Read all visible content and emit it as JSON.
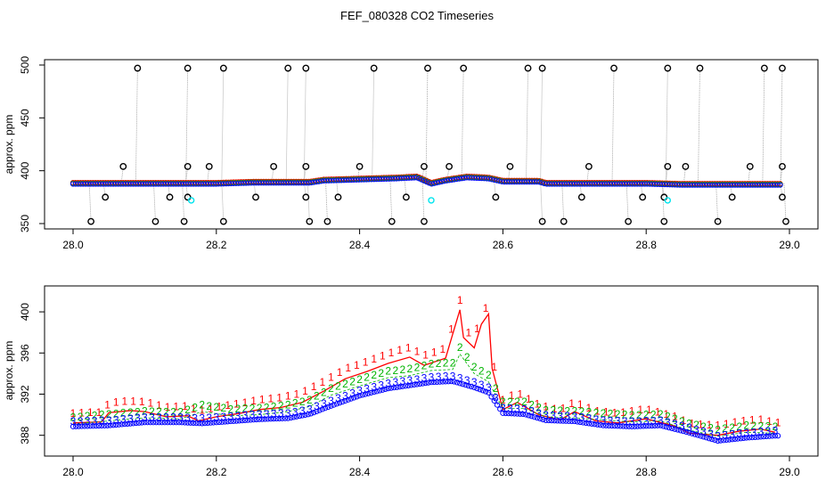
{
  "figure_title": "FEF_080328  CO2 Timeseries",
  "colors": {
    "black": "#000000",
    "red": "#ff0000",
    "green": "#00b400",
    "blue": "#0000ff",
    "cyan": "#00e5ee",
    "gray": "#999999"
  },
  "chart_data": [
    {
      "type": "scatter",
      "title": "FEF_080328  CO2 Timeseries",
      "xlabel": "",
      "ylabel": "approx. ppm",
      "xlim": [
        28.0,
        29.0
      ],
      "ylim": [
        350,
        500
      ],
      "x_ticks": [
        28.0,
        28.2,
        28.4,
        28.6,
        28.8,
        29.0
      ],
      "x_tick_labels": [
        "28.0",
        "28.2",
        "28.4",
        "28.6",
        "28.8",
        "29.0"
      ],
      "y_ticks": [
        350,
        400,
        450,
        500
      ],
      "y_tick_labels": [
        "350",
        "400",
        "450",
        "500"
      ],
      "baseline": {
        "x": [
          28.0,
          28.05,
          28.1,
          28.15,
          28.165,
          28.2,
          28.25,
          28.3,
          28.33,
          28.35,
          28.4,
          28.45,
          28.48,
          28.5,
          28.52,
          28.55,
          28.58,
          28.6,
          28.63,
          28.65,
          28.66,
          28.7,
          28.75,
          28.8,
          28.85,
          28.9,
          28.95,
          28.99
        ],
        "y": [
          389,
          389,
          389,
          389,
          389,
          389,
          390,
          390,
          390,
          392,
          393,
          394,
          395,
          389,
          392,
          395,
          394,
          391,
          391,
          391,
          389,
          389,
          389,
          389,
          388,
          388,
          388,
          388
        ]
      },
      "spikes_high": {
        "x": [
          28.09,
          28.16,
          28.21,
          28.3,
          28.325,
          28.42,
          28.495,
          28.545,
          28.635,
          28.655,
          28.755,
          28.83,
          28.875,
          28.965,
          28.99
        ],
        "y": [
          497,
          497,
          497,
          497,
          497,
          497,
          497,
          497,
          497,
          497,
          497,
          497,
          497,
          497,
          497
        ]
      },
      "spikes_mid": {
        "x": [
          28.07,
          28.16,
          28.19,
          28.28,
          28.325,
          28.4,
          28.49,
          28.525,
          28.61,
          28.72,
          28.83,
          28.855,
          28.945,
          28.99
        ],
        "y": [
          404,
          404,
          404,
          404,
          404,
          404,
          404,
          404,
          404,
          404,
          404,
          404,
          404,
          404
        ]
      },
      "spikes_low1": {
        "x": [
          28.045,
          28.135,
          28.16,
          28.255,
          28.325,
          28.37,
          28.465,
          28.59,
          28.71,
          28.795,
          28.825,
          28.92,
          28.99
        ],
        "y": [
          375,
          375,
          375,
          375,
          375,
          375,
          375,
          375,
          375,
          375,
          375,
          375,
          375
        ]
      },
      "spikes_low2": {
        "x": [
          28.025,
          28.115,
          28.155,
          28.21,
          28.33,
          28.355,
          28.445,
          28.49,
          28.655,
          28.685,
          28.775,
          28.825,
          28.9,
          28.995
        ],
        "y": [
          352,
          352,
          352,
          352,
          352,
          352,
          352,
          352,
          352,
          352,
          352,
          352,
          352,
          352
        ]
      },
      "cyan_points": {
        "x": [
          28.165,
          28.5,
          28.83
        ],
        "y": [
          372,
          372,
          372
        ]
      }
    },
    {
      "type": "line",
      "title": "",
      "xlabel": "",
      "ylabel": "approx. ppm",
      "xlim": [
        28.0,
        29.0
      ],
      "ylim": [
        386.5,
        402
      ],
      "x_ticks": [
        28.0,
        28.2,
        28.4,
        28.6,
        28.8,
        29.0
      ],
      "x_tick_labels": [
        "28.0",
        "28.2",
        "28.4",
        "28.6",
        "28.8",
        "29.0"
      ],
      "y_ticks": [
        388,
        392,
        396,
        400
      ],
      "y_tick_labels": [
        "388",
        "392",
        "396",
        "400"
      ],
      "series": [
        {
          "name": "1",
          "symbol": "1",
          "color": "#ff0000",
          "x": [
            28.0,
            28.04,
            28.05,
            28.08,
            28.1,
            28.13,
            28.16,
            28.175,
            28.2,
            28.23,
            28.26,
            28.29,
            28.32,
            28.35,
            28.38,
            28.41,
            28.44,
            28.47,
            28.49,
            28.52,
            28.54,
            28.545,
            28.56,
            28.57,
            28.58,
            28.585,
            28.6,
            28.62,
            28.65,
            28.68,
            28.7,
            28.73,
            28.76,
            28.8,
            28.84,
            28.86,
            28.9,
            28.93,
            28.96,
            28.98
          ],
          "y": [
            389.2,
            389.3,
            390.2,
            390.4,
            390.3,
            389.8,
            389.9,
            389.4,
            389.8,
            390.1,
            390.5,
            390.7,
            391.2,
            392.3,
            393.5,
            394.2,
            395.0,
            395.6,
            394.8,
            395.5,
            400.2,
            397.5,
            396.5,
            398.8,
            399.8,
            394.5,
            390.5,
            391.2,
            390.0,
            389.5,
            390.3,
            389.4,
            389.2,
            389.6,
            388.9,
            388.2,
            388.0,
            388.4,
            388.6,
            388.3
          ]
        },
        {
          "name": "2",
          "symbol": "2",
          "color": "#00b400",
          "x": [
            28.0,
            28.05,
            28.1,
            28.15,
            28.18,
            28.22,
            28.26,
            28.3,
            28.33,
            28.36,
            28.4,
            28.44,
            28.47,
            28.5,
            28.53,
            28.54,
            28.56,
            28.58,
            28.6,
            28.63,
            28.66,
            28.7,
            28.74,
            28.78,
            28.82,
            28.86,
            28.9,
            28.94,
            28.98
          ],
          "y": [
            389.1,
            389.4,
            389.7,
            389.6,
            390.3,
            389.9,
            390.0,
            390.3,
            390.8,
            391.9,
            392.8,
            393.6,
            393.8,
            394.3,
            394.4,
            395.9,
            394.0,
            393.2,
            390.6,
            390.6,
            389.8,
            389.7,
            389.5,
            389.3,
            389.4,
            388.5,
            387.9,
            388.3,
            388.2
          ]
        },
        {
          "name": "3",
          "symbol": "3",
          "color": "#0000ff",
          "x": [
            28.0,
            28.05,
            28.1,
            28.15,
            28.18,
            28.22,
            28.26,
            28.3,
            28.33,
            28.36,
            28.4,
            28.44,
            28.47,
            28.5,
            28.53,
            28.56,
            28.58,
            28.6,
            28.63,
            28.66,
            28.7,
            28.74,
            28.78,
            28.82,
            28.86,
            28.9,
            28.94,
            28.98
          ],
          "y": [
            389.0,
            389.1,
            389.4,
            389.4,
            389.3,
            389.5,
            389.7,
            389.8,
            390.2,
            391.0,
            392.0,
            392.7,
            393.0,
            393.3,
            393.4,
            392.8,
            392.3,
            390.3,
            390.2,
            389.6,
            389.5,
            389.1,
            389.0,
            389.1,
            388.4,
            387.6,
            387.9,
            388.1
          ]
        }
      ]
    }
  ]
}
